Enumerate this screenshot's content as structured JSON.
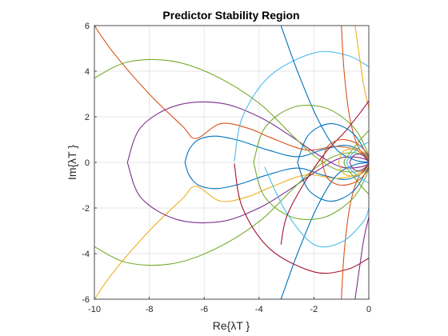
{
  "chart_data": {
    "type": "line",
    "title": "Predictor Stability Region",
    "xlabel": "Re{λT }",
    "ylabel": "Im{λT }",
    "xlim": [
      -10,
      0
    ],
    "ylim": [
      -6,
      6
    ],
    "grid": true,
    "xticks": [
      "-10",
      "-8",
      "-6",
      "-4",
      "-2",
      "0"
    ],
    "yticks": [
      "-6",
      "-4",
      "-2",
      "0",
      "2",
      "4",
      "6"
    ],
    "colors": [
      "#0072bd",
      "#d95319",
      "#edb120",
      "#7e2f8e",
      "#77ac30",
      "#4dbeee",
      "#a2142f"
    ],
    "series": [
      {
        "points": [
          [
            -6.7,
            0
          ],
          [
            -6.55,
            0.55
          ],
          [
            -6.2,
            1.0
          ],
          [
            -5.55,
            1.15
          ],
          [
            -4.7,
            0.95
          ],
          [
            -3.7,
            0.55
          ],
          [
            -2.6,
            0.25
          ],
          [
            -1.7,
            0.55
          ],
          [
            -0.9,
            0.75
          ],
          [
            -0.35,
            0.55
          ],
          [
            -0.05,
            0.2
          ],
          [
            0,
            0
          ],
          [
            -0.05,
            -0.2
          ],
          [
            -0.35,
            -0.55
          ],
          [
            -0.9,
            -0.75
          ],
          [
            -1.7,
            -0.55
          ],
          [
            -2.6,
            -0.25
          ],
          [
            -3.7,
            -0.55
          ],
          [
            -4.7,
            -0.95
          ],
          [
            -5.55,
            -1.15
          ],
          [
            -6.2,
            -1.0
          ],
          [
            -6.55,
            -0.55
          ],
          [
            -6.7,
            0
          ]
        ]
      },
      {
        "points": [
          [
            -10,
            6
          ],
          [
            -9.3,
            4.8
          ],
          [
            -8.0,
            3.0
          ],
          [
            -6.8,
            1.6
          ],
          [
            -6.3,
            1.05
          ],
          [
            -5.4,
            1.7
          ],
          [
            -4.4,
            1.5
          ],
          [
            -3.6,
            1.1
          ],
          [
            -2.3,
            0.55
          ],
          [
            -1.2,
            0.7
          ],
          [
            -0.4,
            0.5
          ],
          [
            0,
            0
          ]
        ]
      },
      {
        "points": [
          [
            -10,
            -6
          ],
          [
            -9.3,
            -4.8
          ],
          [
            -8.0,
            -3.0
          ],
          [
            -6.8,
            -1.6
          ],
          [
            -6.3,
            -1.05
          ],
          [
            -5.4,
            -1.7
          ],
          [
            -4.4,
            -1.5
          ],
          [
            -3.6,
            -1.1
          ],
          [
            -2.3,
            -0.55
          ],
          [
            -1.2,
            -0.7
          ],
          [
            -0.4,
            -0.5
          ],
          [
            0,
            0
          ]
        ]
      },
      {
        "points": [
          [
            -8.8,
            0
          ],
          [
            -8.3,
            1.55
          ],
          [
            -7.0,
            2.5
          ],
          [
            -5.4,
            2.6
          ],
          [
            -4.0,
            2.0
          ],
          [
            -2.9,
            1.2
          ],
          [
            -1.8,
            0.3
          ],
          [
            -1.0,
            -0.2
          ],
          [
            -0.3,
            -0.2
          ],
          [
            0,
            0
          ],
          [
            -0.3,
            0.2
          ],
          [
            -1.0,
            0.2
          ],
          [
            -1.8,
            -0.3
          ],
          [
            -2.9,
            -1.2
          ],
          [
            -4.0,
            -2.0
          ],
          [
            -5.4,
            -2.6
          ],
          [
            -7.0,
            -2.5
          ],
          [
            -8.3,
            -1.55
          ],
          [
            -8.8,
            0
          ]
        ]
      },
      {
        "points": [
          [
            -10,
            3.7
          ],
          [
            -8.8,
            4.4
          ],
          [
            -7.2,
            4.45
          ],
          [
            -5.6,
            3.8
          ],
          [
            -4.0,
            2.6
          ],
          [
            -2.8,
            1.2
          ],
          [
            -2.0,
            0.3
          ],
          [
            -1.2,
            -0.3
          ],
          [
            -0.4,
            -0.4
          ],
          [
            0,
            0
          ],
          [
            -0.4,
            0.4
          ],
          [
            -1.2,
            0.3
          ],
          [
            -2.0,
            -0.3
          ],
          [
            -2.8,
            -1.2
          ],
          [
            -4.0,
            -2.6
          ],
          [
            -5.6,
            -3.8
          ],
          [
            -7.2,
            -4.45
          ],
          [
            -8.8,
            -4.4
          ],
          [
            -10,
            -3.7
          ]
        ]
      },
      {
        "points": [
          [
            -4.9,
            0.05
          ],
          [
            -4.6,
            2.0
          ],
          [
            -3.6,
            3.8
          ],
          [
            -2.0,
            4.8
          ],
          [
            -0.8,
            4.7
          ],
          [
            0,
            4.2
          ]
        ]
      },
      {
        "points": [
          [
            -4.9,
            -0.05
          ],
          [
            -4.6,
            -2.0
          ],
          [
            -3.6,
            -3.8
          ],
          [
            -2.0,
            -4.8
          ],
          [
            -0.8,
            -4.7
          ],
          [
            0,
            -4.2
          ]
        ]
      },
      {
        "points": [
          [
            -3.2,
            6
          ],
          [
            -2.6,
            4.0
          ],
          [
            -1.9,
            2.0
          ],
          [
            -1.2,
            0.6
          ],
          [
            -0.5,
            0.1
          ],
          [
            0,
            0
          ],
          [
            -0.5,
            -0.1
          ],
          [
            -1.2,
            -0.6
          ],
          [
            -1.9,
            -2.0
          ],
          [
            -2.6,
            -4.0
          ],
          [
            -3.2,
            -6
          ]
        ]
      },
      {
        "points": [
          [
            -1.0,
            6
          ],
          [
            -0.9,
            4.0
          ],
          [
            -0.7,
            2.0
          ],
          [
            -0.4,
            0.7
          ],
          [
            0,
            0
          ],
          [
            -0.4,
            -0.7
          ],
          [
            -0.7,
            -2.0
          ],
          [
            -0.9,
            -4.0
          ],
          [
            -1.0,
            -6
          ]
        ]
      },
      {
        "points": [
          [
            -0.5,
            6
          ],
          [
            -0.2,
            3.5
          ],
          [
            0,
            2.4
          ]
        ]
      },
      {
        "points": [
          [
            -0.5,
            -6
          ],
          [
            -0.2,
            -3.5
          ],
          [
            0,
            -2.4
          ]
        ]
      },
      {
        "points": [
          [
            -4.2,
            0.0
          ],
          [
            -3.8,
            1.5
          ],
          [
            -2.8,
            2.4
          ],
          [
            -1.6,
            2.4
          ],
          [
            -0.6,
            1.6
          ],
          [
            -0.1,
            0.6
          ],
          [
            0,
            0
          ],
          [
            -0.1,
            -0.6
          ],
          [
            -0.6,
            -1.6
          ],
          [
            -1.6,
            -2.4
          ],
          [
            -2.8,
            -2.4
          ],
          [
            -3.8,
            -1.5
          ],
          [
            -4.2,
            0.0
          ]
        ]
      },
      {
        "points": [
          [
            -3.8,
            -0.2
          ],
          [
            -3.0,
            -2.2
          ],
          [
            -2.0,
            -3.6
          ],
          [
            -1.0,
            -3.5
          ],
          [
            -0.2,
            -2.6
          ],
          [
            0,
            -2.0
          ]
        ]
      },
      {
        "points": [
          [
            0,
            2.7
          ],
          [
            -0.3,
            2.2
          ],
          [
            -0.9,
            1.3
          ],
          [
            -1.6,
            0.4
          ],
          [
            -2.4,
            -1.0
          ],
          [
            -3.0,
            -2.4
          ],
          [
            -3.2,
            -3.6
          ]
        ]
      },
      {
        "points": [
          [
            -2.6,
            0.0
          ],
          [
            -2.2,
            1.2
          ],
          [
            -1.4,
            1.7
          ],
          [
            -0.6,
            1.3
          ],
          [
            -0.1,
            0.4
          ],
          [
            0,
            0
          ],
          [
            -0.1,
            -0.4
          ],
          [
            -0.6,
            -1.3
          ],
          [
            -1.4,
            -1.7
          ],
          [
            -2.2,
            -1.2
          ],
          [
            -2.6,
            0.0
          ]
        ]
      },
      {
        "points": [
          [
            -1.7,
            0.0
          ],
          [
            -1.5,
            0.7
          ],
          [
            -1.0,
            1.0
          ],
          [
            -0.4,
            0.8
          ],
          [
            0,
            0.25
          ],
          [
            0,
            -0.25
          ],
          [
            -0.4,
            -0.8
          ],
          [
            -1.0,
            -1.0
          ],
          [
            -1.5,
            -0.7
          ],
          [
            -1.7,
            0.0
          ]
        ]
      },
      {
        "points": [
          [
            -1.1,
            0.0
          ],
          [
            -0.95,
            0.45
          ],
          [
            -0.6,
            0.6
          ],
          [
            -0.2,
            0.45
          ],
          [
            0,
            0.1
          ],
          [
            0,
            -0.1
          ],
          [
            -0.2,
            -0.45
          ],
          [
            -0.6,
            -0.6
          ],
          [
            -0.95,
            -0.45
          ],
          [
            -1.1,
            0.0
          ]
        ]
      },
      {
        "points": [
          [
            -0.7,
            0.0
          ],
          [
            -0.55,
            0.3
          ],
          [
            -0.3,
            0.35
          ],
          [
            -0.05,
            0.15
          ],
          [
            0,
            0
          ],
          [
            -0.05,
            -0.15
          ],
          [
            -0.3,
            -0.35
          ],
          [
            -0.55,
            -0.3
          ],
          [
            -0.7,
            0.0
          ]
        ]
      },
      {
        "points": [
          [
            0,
            1.4
          ],
          [
            -0.3,
            1.0
          ],
          [
            -0.7,
            0.4
          ],
          [
            -0.9,
            0.0
          ],
          [
            -0.7,
            -0.4
          ],
          [
            -0.3,
            -1.0
          ],
          [
            0,
            -1.4
          ]
        ]
      },
      {
        "points": [
          [
            0,
            0.9
          ],
          [
            -0.4,
            0.6
          ],
          [
            -0.8,
            0.0
          ],
          [
            -0.4,
            -0.6
          ],
          [
            0,
            -0.9
          ]
        ]
      }
    ]
  }
}
